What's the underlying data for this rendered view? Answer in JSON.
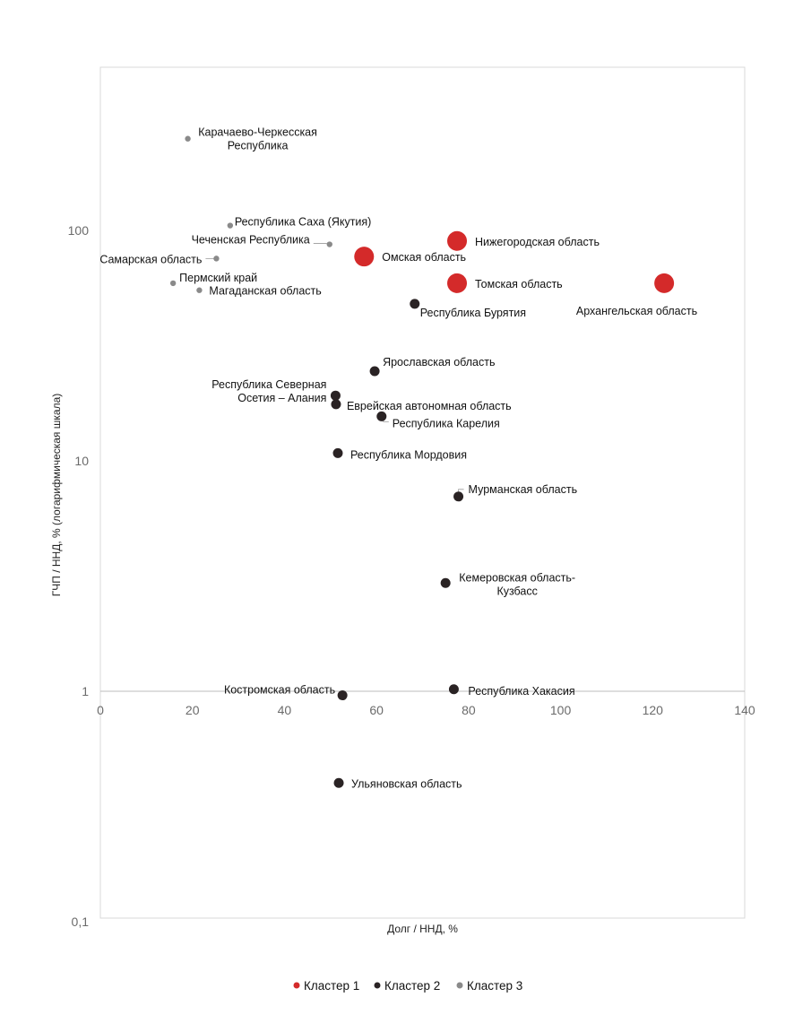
{
  "chart_data": {
    "type": "scatter",
    "title": "",
    "xlabel": "Долг / ННД, %",
    "ylabel": "ГЧП / ННД, % (логарифмическая шкала)",
    "xlim": [
      0,
      140
    ],
    "ylim": [
      0.1,
      500
    ],
    "y_scale": "log",
    "x_ticks": [
      "0",
      "20",
      "40",
      "60",
      "80",
      "100",
      "120",
      "140"
    ],
    "x_tick_values": [
      0,
      20,
      40,
      60,
      80,
      100,
      120,
      140
    ],
    "y_ticks": [
      "0,1",
      "1",
      "10",
      "100"
    ],
    "y_tick_values": [
      0.1,
      1,
      10,
      100
    ],
    "legend_position": "bottom",
    "series": [
      {
        "name": "Кластер 1",
        "color": "#d42a2a",
        "points": [
          {
            "label": "Нижегородская область",
            "x": 77.5,
            "y": 90
          },
          {
            "label": "Омская область",
            "x": 57.3,
            "y": 77
          },
          {
            "label": "Томская область",
            "x": 77.5,
            "y": 59
          },
          {
            "label": "Архангельская область",
            "x": 122.5,
            "y": 59
          }
        ]
      },
      {
        "name": "Кластер 2",
        "color": "#2a2324",
        "points": [
          {
            "label": "Республика Бурятия",
            "x": 68.3,
            "y": 48
          },
          {
            "label": "Ярославская область",
            "x": 59.6,
            "y": 24.5
          },
          {
            "label": "Республика Северная Осетия – Алания",
            "x": 51.1,
            "y": 19.2
          },
          {
            "label": "Еврейская автономная область",
            "x": 51.2,
            "y": 17.6
          },
          {
            "label": "Республика Карелия",
            "x": 61.1,
            "y": 15.6
          },
          {
            "label": "Республика Мордовия",
            "x": 51.6,
            "y": 10.8
          },
          {
            "label": "Мурманская область",
            "x": 77.8,
            "y": 7
          },
          {
            "label": "Кемеровская область-Кузбасс",
            "x": 75.0,
            "y": 2.95
          },
          {
            "label": "Республика Хакасия",
            "x": 76.8,
            "y": 1.02
          },
          {
            "label": "Костромская область",
            "x": 52.6,
            "y": 0.96
          },
          {
            "label": "Ульяновская область",
            "x": 51.8,
            "y": 0.4
          }
        ]
      },
      {
        "name": "Кластер 3",
        "color": "#8a8a8a",
        "points": [
          {
            "label": "Карачаево-Черкесская Республика",
            "x": 19.0,
            "y": 250
          },
          {
            "label": "Республика Саха (Якутия)",
            "x": 28.2,
            "y": 105
          },
          {
            "label": "Чеченская Республика",
            "x": 49.8,
            "y": 87
          },
          {
            "label": "Самарская область",
            "x": 25.2,
            "y": 75.5
          },
          {
            "label": "Пермский край",
            "x": 15.8,
            "y": 59
          },
          {
            "label": "Магаданская область",
            "x": 21.5,
            "y": 55
          }
        ]
      }
    ]
  }
}
